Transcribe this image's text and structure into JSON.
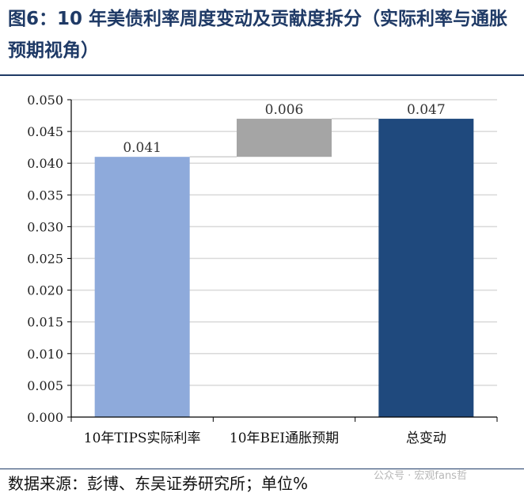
{
  "figure": {
    "title": "图6：10 年美债利率周度变动及贡献度拆分（实际利率与通胀预期视角）",
    "source": "数据来源：彭博、东吴证券研究所；单位%",
    "watermark": "公众号 · 宏观fans哲"
  },
  "chart_data": {
    "type": "bar",
    "subtype": "waterfall",
    "title": "",
    "xlabel": "",
    "ylabel": "",
    "ylim": [
      0,
      0.05
    ],
    "yticks": [
      "0.000",
      "0.005",
      "0.010",
      "0.015",
      "0.020",
      "0.025",
      "0.030",
      "0.035",
      "0.040",
      "0.045",
      "0.050"
    ],
    "grid": true,
    "legend": "none",
    "categories": [
      "10年TIPS实际利率",
      "10年BEI通胀预期",
      "总变动"
    ],
    "values": [
      0.041,
      0.006,
      0.047
    ],
    "bases": [
      0,
      0.041,
      0
    ],
    "data_labels": [
      "0.041",
      "0.006",
      "0.047"
    ],
    "colors": [
      "#8eaadb",
      "#a5a5a5",
      "#1f497d"
    ]
  }
}
